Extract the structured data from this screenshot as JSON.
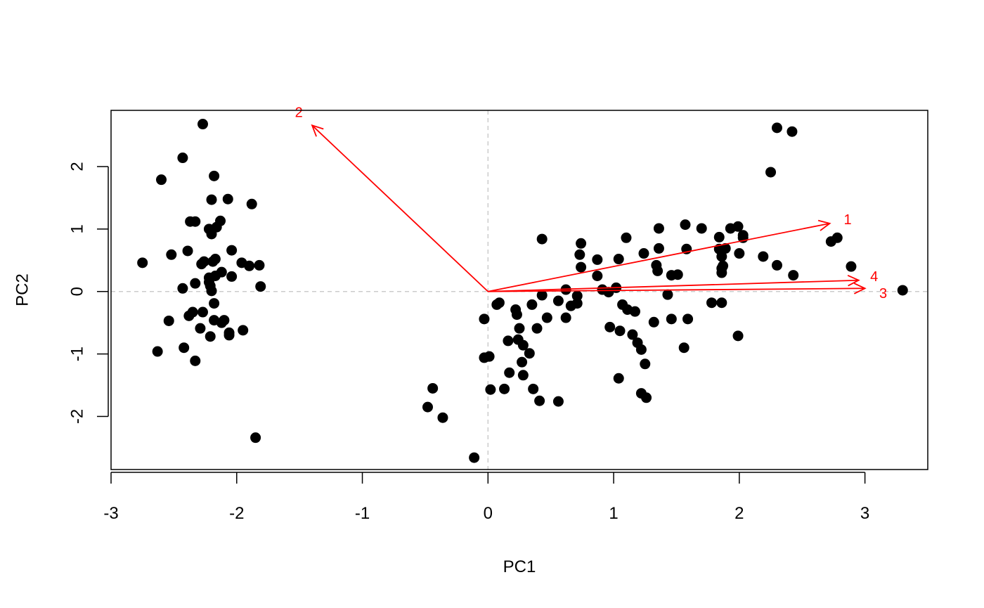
{
  "chart_data": {
    "type": "scatter",
    "title": "",
    "xlabel": "PC1",
    "ylabel": "PC2",
    "xlim": [
      -3,
      3.5
    ],
    "ylim": [
      -2.85,
      2.9
    ],
    "x_ticks": [
      -3,
      -2,
      -1,
      0,
      1,
      2,
      3
    ],
    "x_tick_labels": [
      "-3",
      "-2",
      "-1",
      "0",
      "1",
      "2",
      "3"
    ],
    "y_ticks": [
      -2,
      -1,
      0,
      1,
      2
    ],
    "y_tick_labels": [
      "-2",
      "-1",
      "0",
      "1",
      "2"
    ],
    "grid": false,
    "reference_lines": {
      "x": 0,
      "y": 0,
      "style": "dashed",
      "color": "#cccccc"
    },
    "point_color": "#000000",
    "series": [
      {
        "points": [
          [
            -2.27,
            2.68
          ],
          [
            -2.43,
            2.14
          ],
          [
            -2.6,
            1.79
          ],
          [
            -2.18,
            1.85
          ],
          [
            -2.2,
            1.47
          ],
          [
            -2.07,
            1.48
          ],
          [
            -1.88,
            1.4
          ],
          [
            -2.37,
            1.12
          ],
          [
            -2.33,
            1.12
          ],
          [
            -2.13,
            1.13
          ],
          [
            -2.16,
            1.03
          ],
          [
            -2.22,
            1.0
          ],
          [
            -2.2,
            0.92
          ],
          [
            -2.39,
            0.65
          ],
          [
            -2.52,
            0.59
          ],
          [
            -2.04,
            0.66
          ],
          [
            -2.75,
            0.46
          ],
          [
            -2.28,
            0.44
          ],
          [
            -2.26,
            0.48
          ],
          [
            -2.17,
            0.52
          ],
          [
            -2.19,
            0.48
          ],
          [
            -1.96,
            0.46
          ],
          [
            -1.9,
            0.41
          ],
          [
            -1.82,
            0.42
          ],
          [
            -2.12,
            0.31
          ],
          [
            -2.17,
            0.25
          ],
          [
            -2.04,
            0.24
          ],
          [
            -2.22,
            0.22
          ],
          [
            -2.22,
            0.15
          ],
          [
            -2.33,
            0.13
          ],
          [
            -2.21,
            0.09
          ],
          [
            -1.81,
            0.08
          ],
          [
            -2.43,
            0.05
          ],
          [
            -2.2,
            0.01
          ],
          [
            -2.27,
            -0.33
          ],
          [
            -2.35,
            -0.33
          ],
          [
            -2.38,
            -0.39
          ],
          [
            -2.18,
            -0.19
          ],
          [
            -2.18,
            -0.46
          ],
          [
            -2.12,
            -0.5
          ],
          [
            -2.1,
            -0.46
          ],
          [
            -2.54,
            -0.47
          ],
          [
            -2.29,
            -0.59
          ],
          [
            -1.95,
            -0.62
          ],
          [
            -2.06,
            -0.66
          ],
          [
            -2.06,
            -0.7
          ],
          [
            -2.21,
            -0.72
          ],
          [
            -2.42,
            -0.9
          ],
          [
            -2.63,
            -0.96
          ],
          [
            -2.33,
            -1.11
          ],
          [
            -1.85,
            -2.34
          ],
          [
            2.3,
            2.62
          ],
          [
            2.42,
            2.56
          ],
          [
            2.25,
            1.91
          ],
          [
            1.57,
            1.07
          ],
          [
            1.36,
            1.01
          ],
          [
            1.7,
            1.01
          ],
          [
            1.93,
            1.01
          ],
          [
            1.99,
            1.04
          ],
          [
            2.03,
            0.9
          ],
          [
            2.03,
            0.86
          ],
          [
            1.84,
            0.87
          ],
          [
            2.78,
            0.86
          ],
          [
            2.73,
            0.8
          ],
          [
            0.43,
            0.84
          ],
          [
            1.1,
            0.86
          ],
          [
            0.74,
            0.77
          ],
          [
            1.36,
            0.69
          ],
          [
            1.58,
            0.68
          ],
          [
            1.89,
            0.69
          ],
          [
            1.84,
            0.68
          ],
          [
            0.73,
            0.59
          ],
          [
            0.87,
            0.51
          ],
          [
            1.04,
            0.52
          ],
          [
            1.24,
            0.61
          ],
          [
            1.86,
            0.56
          ],
          [
            2.0,
            0.61
          ],
          [
            2.19,
            0.56
          ],
          [
            1.34,
            0.42
          ],
          [
            1.35,
            0.33
          ],
          [
            1.86,
            0.37
          ],
          [
            1.87,
            0.41
          ],
          [
            2.3,
            0.42
          ],
          [
            2.89,
            0.4
          ],
          [
            0.74,
            0.39
          ],
          [
            1.46,
            0.26
          ],
          [
            1.51,
            0.27
          ],
          [
            0.87,
            0.25
          ],
          [
            1.86,
            0.3
          ],
          [
            2.43,
            0.26
          ],
          [
            3.3,
            0.02
          ],
          [
            0.62,
            0.03
          ],
          [
            0.91,
            0.03
          ],
          [
            0.96,
            -0.01
          ],
          [
            1.02,
            0.06
          ],
          [
            1.43,
            -0.05
          ],
          [
            0.43,
            -0.06
          ],
          [
            0.71,
            -0.07
          ],
          [
            0.07,
            -0.21
          ],
          [
            0.09,
            -0.18
          ],
          [
            0.56,
            -0.15
          ],
          [
            0.71,
            -0.19
          ],
          [
            0.66,
            -0.23
          ],
          [
            0.35,
            -0.21
          ],
          [
            1.07,
            -0.21
          ],
          [
            1.11,
            -0.29
          ],
          [
            1.17,
            -0.32
          ],
          [
            1.78,
            -0.18
          ],
          [
            1.86,
            -0.18
          ],
          [
            0.22,
            -0.29
          ],
          [
            0.23,
            -0.37
          ],
          [
            0.47,
            -0.42
          ],
          [
            0.62,
            -0.42
          ],
          [
            1.46,
            -0.44
          ],
          [
            1.32,
            -0.49
          ],
          [
            1.59,
            -0.44
          ],
          [
            -0.03,
            -0.44
          ],
          [
            0.25,
            -0.59
          ],
          [
            0.39,
            -0.59
          ],
          [
            0.97,
            -0.57
          ],
          [
            1.05,
            -0.63
          ],
          [
            1.15,
            -0.69
          ],
          [
            1.99,
            -0.71
          ],
          [
            0.16,
            -0.79
          ],
          [
            0.24,
            -0.77
          ],
          [
            0.28,
            -0.86
          ],
          [
            1.19,
            -0.82
          ],
          [
            1.22,
            -0.93
          ],
          [
            0.33,
            -0.99
          ],
          [
            1.56,
            -0.9
          ],
          [
            -0.03,
            -1.06
          ],
          [
            0.01,
            -1.04
          ],
          [
            0.27,
            -1.13
          ],
          [
            1.25,
            -1.16
          ],
          [
            0.17,
            -1.3
          ],
          [
            0.28,
            -1.34
          ],
          [
            1.04,
            -1.39
          ],
          [
            -0.44,
            -1.55
          ],
          [
            0.13,
            -1.56
          ],
          [
            0.02,
            -1.57
          ],
          [
            0.36,
            -1.56
          ],
          [
            1.22,
            -1.63
          ],
          [
            0.41,
            -1.75
          ],
          [
            0.56,
            -1.76
          ],
          [
            1.26,
            -1.7
          ],
          [
            -0.48,
            -1.85
          ],
          [
            -0.36,
            -2.02
          ],
          [
            -0.11,
            -2.66
          ]
        ]
      }
    ],
    "loadings": [
      {
        "label": "1",
        "x": 2.72,
        "y": 1.09
      },
      {
        "label": "2",
        "x": -1.4,
        "y": 2.66
      },
      {
        "label": "3",
        "x": 3.0,
        "y": 0.05
      },
      {
        "label": "4",
        "x": 2.95,
        "y": 0.18
      }
    ],
    "loading_color": "#ff0000"
  }
}
